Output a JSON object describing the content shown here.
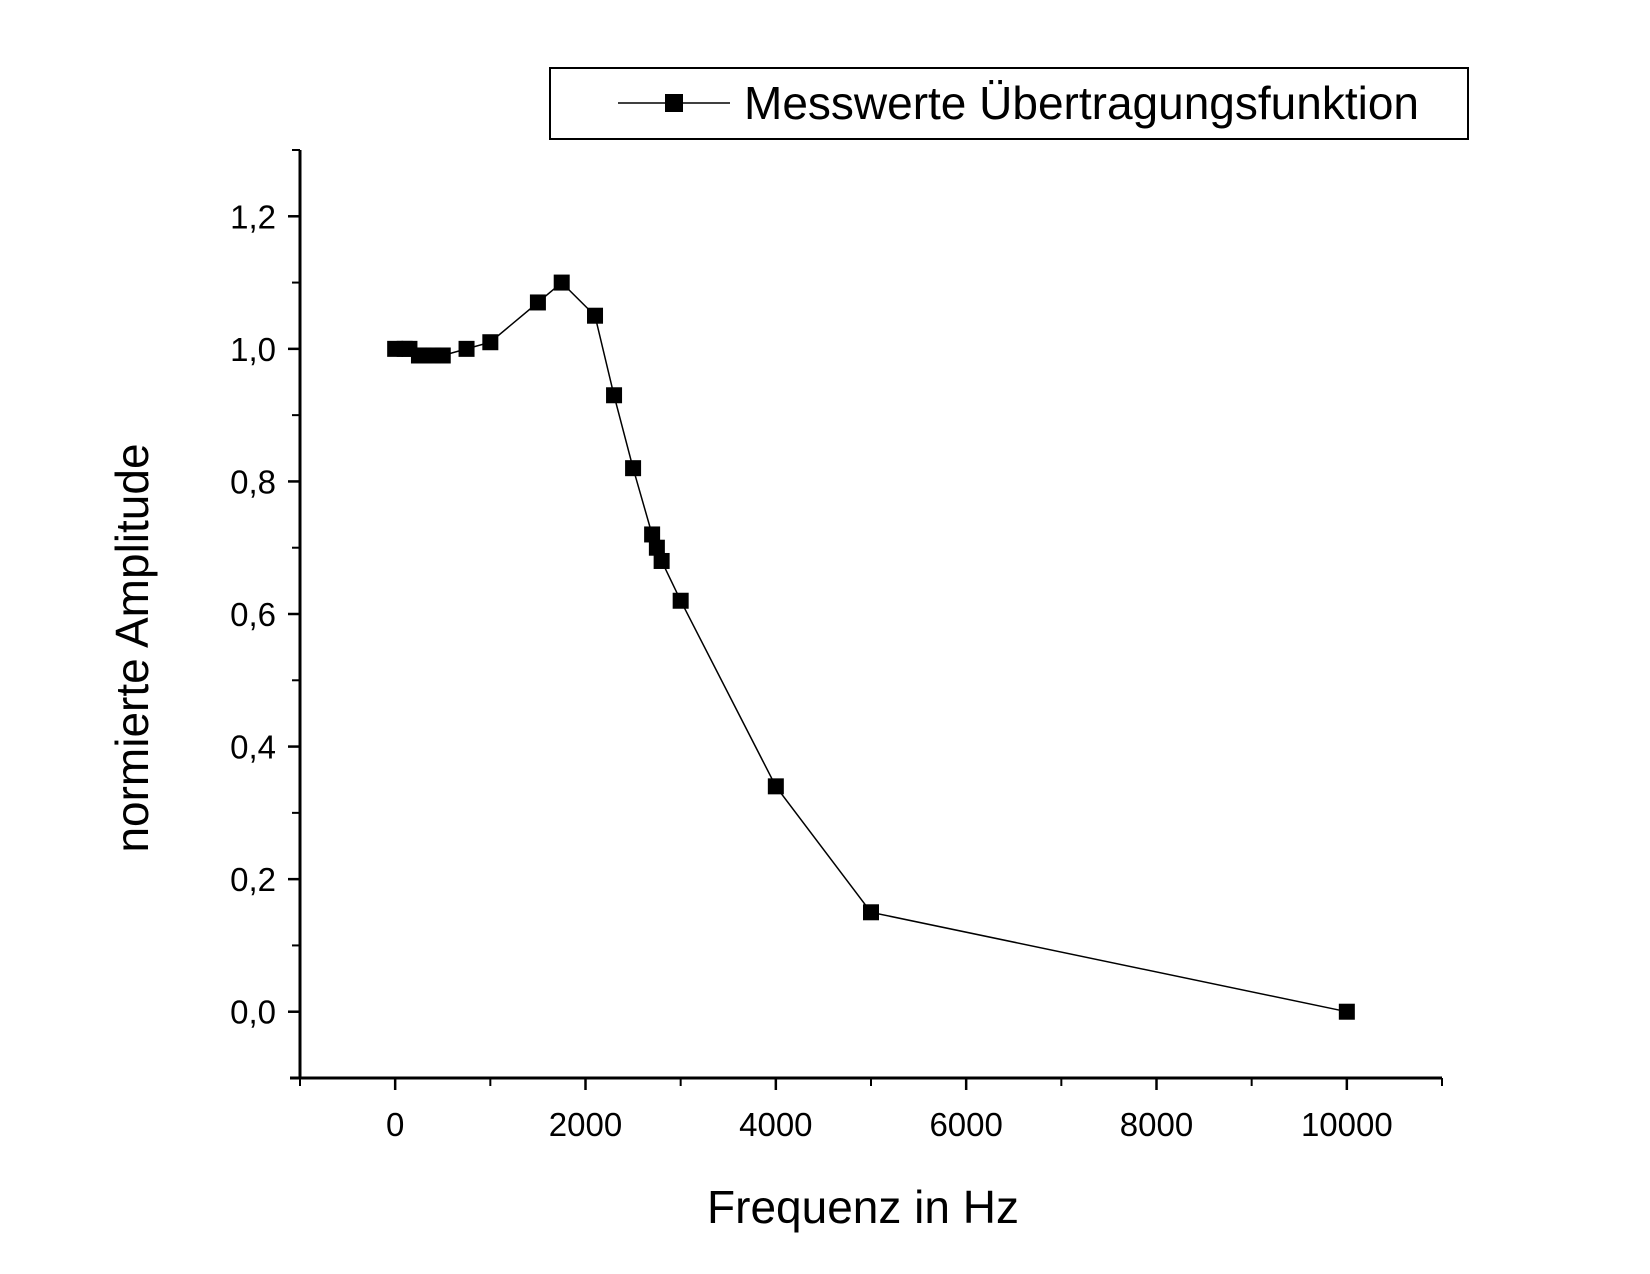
{
  "chart_data": {
    "type": "line",
    "xlabel": "Frequenz in Hz",
    "ylabel": "normierte Amplitude",
    "xlim": [
      -1000,
      11000
    ],
    "ylim": [
      -0.1,
      1.3
    ],
    "x_ticks": [
      0,
      2000,
      4000,
      6000,
      8000,
      10000
    ],
    "x_tick_labels": [
      "0",
      "2000",
      "4000",
      "6000",
      "8000",
      "10000"
    ],
    "y_ticks": [
      0.0,
      0.2,
      0.4,
      0.6,
      0.8,
      1.0,
      1.2
    ],
    "y_tick_labels": [
      "0,0",
      "0,2",
      "0,4",
      "0,6",
      "0,8",
      "1,0",
      "1,2"
    ],
    "grid": false,
    "legend_position": "top-right",
    "series": [
      {
        "name": "Messwerte Übertragungsfunktion",
        "marker": "square",
        "color": "#000000",
        "points": [
          {
            "x": 0,
            "y": 1.0
          },
          {
            "x": 100,
            "y": 1.0
          },
          {
            "x": 150,
            "y": 1.0
          },
          {
            "x": 250,
            "y": 0.99
          },
          {
            "x": 300,
            "y": 0.99
          },
          {
            "x": 400,
            "y": 0.99
          },
          {
            "x": 500,
            "y": 0.99
          },
          {
            "x": 750,
            "y": 1.0
          },
          {
            "x": 1000,
            "y": 1.01
          },
          {
            "x": 1500,
            "y": 1.07
          },
          {
            "x": 1750,
            "y": 1.1
          },
          {
            "x": 2100,
            "y": 1.05
          },
          {
            "x": 2300,
            "y": 0.93
          },
          {
            "x": 2500,
            "y": 0.82
          },
          {
            "x": 2700,
            "y": 0.72
          },
          {
            "x": 2750,
            "y": 0.7
          },
          {
            "x": 2800,
            "y": 0.68
          },
          {
            "x": 3000,
            "y": 0.62
          },
          {
            "x": 4000,
            "y": 0.34
          },
          {
            "x": 5000,
            "y": 0.15
          },
          {
            "x": 10000,
            "y": 0.0
          }
        ]
      }
    ]
  }
}
